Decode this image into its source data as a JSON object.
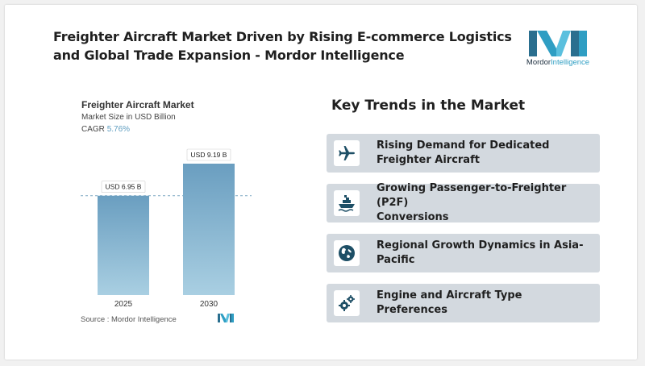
{
  "header": {
    "title_line1": "Freighter Aircraft Market Driven by Rising E-commerce Logistics",
    "title_line2": "and Global Trade Expansion - Mordor Intelligence",
    "logo_bold": "Mordor",
    "logo_light": "Intelligence"
  },
  "chart_info": {
    "title": "Freighter Aircraft Market",
    "subtitle": "Market Size in USD Billion",
    "cagr_label": "CAGR",
    "cagr_value": "5.76%",
    "source": "Source :  Mordor Intelligence"
  },
  "chart_data": {
    "type": "bar",
    "title": "Freighter Aircraft Market",
    "ylabel": "Market Size in USD Billion",
    "categories": [
      "2025",
      "2030"
    ],
    "values": [
      6.95,
      9.19
    ],
    "data_labels": [
      "USD 6.95 B",
      "USD 9.19 B"
    ],
    "ylim": [
      0,
      9.19
    ],
    "grid": false,
    "colors": {
      "bar_top": "#6a9ec0",
      "bar_bottom": "#a9cfe2"
    }
  },
  "trends": {
    "heading": "Key Trends in the Market",
    "items": [
      {
        "label_line1": "Rising Demand for Dedicated",
        "label_line2": "Freighter Aircraft",
        "icon": "airplane-icon"
      },
      {
        "label_line1": "Growing Passenger-to-Freighter (P2F)",
        "label_line2": "Conversions",
        "icon": "cargo-ship-icon"
      },
      {
        "label_line1": "Regional Growth Dynamics in Asia-",
        "label_line2": "Pacific",
        "icon": "globe-icon"
      },
      {
        "label_line1": "Engine and Aircraft Type Preferences",
        "label_line2": "",
        "icon": "gears-icon"
      }
    ]
  },
  "colors": {
    "accent": "#2f9ec3",
    "icon_dark": "#1e4f66",
    "trend_bg": "#d3d9df"
  }
}
